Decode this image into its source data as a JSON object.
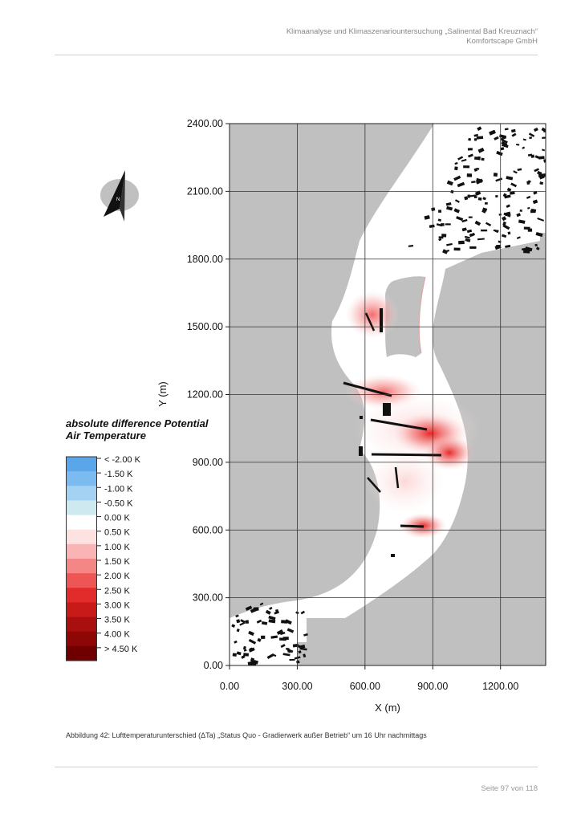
{
  "header": {
    "line1": "Klimaanalyse und Klimaszenariountersuchung „Salinental Bad Kreuznach“",
    "line2": "Komfortscape GmbH"
  },
  "compass": {
    "label": "N"
  },
  "legend": {
    "title_line1": "absolute difference Potential",
    "title_line2": "Air Temperature",
    "items": [
      {
        "label": "< -2.00 K",
        "color": "#5aa6e8"
      },
      {
        "label": "-1.50  K",
        "color": "#7cbbef"
      },
      {
        "label": "-1.00  K",
        "color": "#a4d2f3"
      },
      {
        "label": "-0.50  K",
        "color": "#cfe9f1"
      },
      {
        "label": "0.00  K",
        "color": "#ffffff"
      },
      {
        "label": "0.50  K",
        "color": "#fde2e2"
      },
      {
        "label": "1.00  K",
        "color": "#f9b5b5"
      },
      {
        "label": "1.50  K",
        "color": "#f48686"
      },
      {
        "label": "2.00  K",
        "color": "#ee5555"
      },
      {
        "label": "2.50  K",
        "color": "#e22b2b"
      },
      {
        "label": "3.00  K",
        "color": "#c91a1a"
      },
      {
        "label": "3.50  K",
        "color": "#a90f0f"
      },
      {
        "label": "4.00  K",
        "color": "#8d0707"
      },
      {
        "label": "> 4.50 K",
        "color": "#700000"
      }
    ]
  },
  "chart_data": {
    "type": "heatmap",
    "xlabel": "X (m)",
    "ylabel": "Y (m)",
    "xlim": [
      0,
      1400
    ],
    "ylim": [
      0,
      2400
    ],
    "xticks": [
      "0.00",
      "300.00",
      "600.00",
      "900.00",
      "1200.00"
    ],
    "yticks": [
      "0.00",
      "300.00",
      "600.00",
      "900.00",
      "1200.00",
      "1500.00",
      "1800.00",
      "2100.00",
      "2400.00"
    ],
    "grid": true,
    "hotspots": [
      {
        "x": 650,
        "y": 1530,
        "dT_K": 2.5
      },
      {
        "x": 700,
        "y": 1200,
        "dT_K": 2.5
      },
      {
        "x": 850,
        "y": 1050,
        "dT_K": 3.0
      },
      {
        "x": 960,
        "y": 930,
        "dT_K": 2.5
      },
      {
        "x": 860,
        "y": 610,
        "dT_K": 2.5
      }
    ]
  },
  "caption": "Abbildung 42: Lufttemperaturunterschied (ΔTa) „Status Quo - Gradierwerk außer Betrieb“ um 16 Uhr nachmittags",
  "footer": "Seite 97 von 118"
}
